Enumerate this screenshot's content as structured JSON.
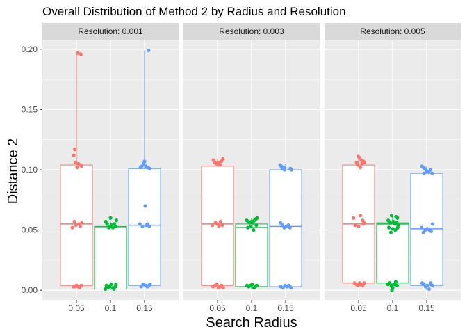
{
  "chart_data": {
    "type": "boxplot",
    "title": "Overall Distribution of Method 2 by Radius and Resolution",
    "xlabel": "Search Radius",
    "ylabel": "Distance 2",
    "ylim": [
      -0.008,
      0.208
    ],
    "yticks": [
      0.0,
      0.05,
      0.1,
      0.15,
      0.2
    ],
    "ytick_labels": [
      "0.00",
      "0.05",
      "0.10",
      "0.15",
      "0.20"
    ],
    "categories": [
      "0.05",
      "0.1",
      "0.15"
    ],
    "colors": {
      "0.05": "#F8766D",
      "0.1": "#00BA38",
      "0.15": "#619CFF"
    },
    "facet_label_prefix": "Resolution: ",
    "panels": [
      {
        "strip": "Resolution: 0.001",
        "boxes": [
          {
            "category": "0.05",
            "whisker_low": 0.003,
            "q1": 0.004,
            "median": 0.055,
            "q3": 0.104,
            "whisker_high": 0.197,
            "points": [
              [
                0.04,
                0.197
              ],
              [
                0.13,
                0.196
              ],
              [
                -0.05,
                0.117
              ],
              [
                -0.08,
                0.112
              ],
              [
                -0.03,
                0.106
              ],
              [
                0.06,
                0.105
              ],
              [
                0.12,
                0.104
              ],
              [
                0.15,
                0.103
              ],
              [
                0.02,
                0.102
              ],
              [
                -0.12,
                0.052
              ],
              [
                -0.02,
                0.054
              ],
              [
                0.07,
                0.055
              ],
              [
                0.11,
                0.053
              ],
              [
                0.16,
                0.056
              ],
              [
                -0.06,
                0.057
              ],
              [
                -0.04,
                0.003
              ],
              [
                0.0,
                0.004
              ],
              [
                0.05,
                0.003
              ],
              [
                0.09,
                0.002
              ],
              [
                0.14,
                0.004
              ],
              [
                -0.09,
                0.003
              ]
            ]
          },
          {
            "category": "0.1",
            "whisker_low": 0.0,
            "q1": 0.001,
            "median": 0.052,
            "q3": 0.053,
            "whisker_high": 0.057,
            "points": [
              [
                -0.14,
                0.057
              ],
              [
                -0.1,
                0.055
              ],
              [
                -0.05,
                0.052
              ],
              [
                -0.01,
                0.053
              ],
              [
                0.03,
                0.054
              ],
              [
                0.07,
                0.052
              ],
              [
                0.11,
                0.055
              ],
              [
                0.15,
                0.053
              ],
              [
                0.17,
                0.058
              ],
              [
                0.0,
                0.06
              ],
              [
                -0.12,
                0.004
              ],
              [
                -0.08,
                0.002
              ],
              [
                -0.03,
                0.003
              ],
              [
                0.02,
                0.005
              ],
              [
                0.06,
                0.002
              ],
              [
                0.1,
                0.001
              ],
              [
                0.14,
                0.003
              ],
              [
                0.16,
                0.005
              ],
              [
                -0.15,
                0.001
              ]
            ]
          },
          {
            "category": "0.15",
            "whisker_low": 0.003,
            "q1": 0.004,
            "median": 0.054,
            "q3": 0.101,
            "whisker_high": 0.199,
            "points": [
              [
                0.12,
                0.199
              ],
              [
                0.0,
                0.107
              ],
              [
                -0.03,
                0.105
              ],
              [
                0.04,
                0.103
              ],
              [
                0.1,
                0.102
              ],
              [
                0.15,
                0.101
              ],
              [
                -0.12,
                0.102
              ],
              [
                -0.08,
                0.103
              ],
              [
                0.02,
                0.07
              ],
              [
                -0.14,
                0.055
              ],
              [
                -0.06,
                0.053
              ],
              [
                0.05,
                0.054
              ],
              [
                0.09,
                0.055
              ],
              [
                0.14,
                0.053
              ],
              [
                -0.1,
                0.003
              ],
              [
                -0.04,
                0.005
              ],
              [
                0.03,
                0.004
              ],
              [
                0.08,
                0.003
              ],
              [
                0.13,
                0.004
              ],
              [
                0.16,
                0.005
              ]
            ]
          }
        ]
      },
      {
        "strip": "Resolution: 0.003",
        "boxes": [
          {
            "category": "0.05",
            "whisker_low": 0.002,
            "q1": 0.004,
            "median": 0.055,
            "q3": 0.103,
            "whisker_high": 0.109,
            "points": [
              [
                -0.12,
                0.108
              ],
              [
                -0.08,
                0.106
              ],
              [
                -0.03,
                0.105
              ],
              [
                0.02,
                0.106
              ],
              [
                0.07,
                0.104
              ],
              [
                0.11,
                0.107
              ],
              [
                0.16,
                0.109
              ],
              [
                -0.15,
                0.054
              ],
              [
                -0.06,
                0.056
              ],
              [
                0.0,
                0.055
              ],
              [
                0.04,
                0.053
              ],
              [
                0.09,
                0.057
              ],
              [
                0.14,
                0.054
              ],
              [
                -0.13,
                0.003
              ],
              [
                -0.07,
                0.004
              ],
              [
                -0.02,
                0.005
              ],
              [
                0.03,
                0.002
              ],
              [
                0.08,
                0.003
              ],
              [
                0.12,
                0.004
              ],
              [
                0.17,
                0.002
              ]
            ]
          },
          {
            "category": "0.1",
            "whisker_low": 0.001,
            "q1": 0.003,
            "median": 0.052,
            "q3": 0.055,
            "whisker_high": 0.06,
            "points": [
              [
                -0.14,
                0.058
              ],
              [
                -0.09,
                0.057
              ],
              [
                -0.05,
                0.056
              ],
              [
                0.0,
                0.057
              ],
              [
                0.04,
                0.056
              ],
              [
                0.08,
                0.058
              ],
              [
                0.12,
                0.059
              ],
              [
                0.16,
                0.06
              ],
              [
                -0.11,
                0.052
              ],
              [
                -0.02,
                0.053
              ],
              [
                0.06,
                0.05
              ],
              [
                0.14,
                0.054
              ],
              [
                -0.13,
                0.004
              ],
              [
                -0.08,
                0.003
              ],
              [
                -0.03,
                0.004
              ],
              [
                0.02,
                0.005
              ],
              [
                0.07,
                0.002
              ],
              [
                0.11,
                0.003
              ],
              [
                0.15,
                0.004
              ]
            ]
          },
          {
            "category": "0.15",
            "whisker_low": 0.002,
            "q1": 0.003,
            "median": 0.053,
            "q3": 0.1,
            "whisker_high": 0.105,
            "points": [
              [
                -0.16,
                0.104
              ],
              [
                -0.13,
                0.103
              ],
              [
                -0.1,
                0.101
              ],
              [
                -0.06,
                0.102
              ],
              [
                -0.03,
                0.1
              ],
              [
                0.14,
                0.101
              ],
              [
                0.17,
                0.1
              ],
              [
                -0.15,
                0.056
              ],
              [
                -0.09,
                0.054
              ],
              [
                -0.04,
                0.052
              ],
              [
                0.02,
                0.053
              ],
              [
                0.08,
                0.054
              ],
              [
                0.13,
                0.052
              ],
              [
                -0.14,
                0.003
              ],
              [
                -0.08,
                0.002
              ],
              [
                -0.02,
                0.004
              ],
              [
                0.03,
                0.003
              ],
              [
                0.09,
                0.004
              ],
              [
                0.13,
                0.003
              ],
              [
                0.16,
                0.002
              ]
            ]
          }
        ]
      },
      {
        "strip": "Resolution: 0.005",
        "boxes": [
          {
            "category": "0.05",
            "whisker_low": 0.004,
            "q1": 0.006,
            "median": 0.055,
            "q3": 0.104,
            "whisker_high": 0.111,
            "points": [
              [
                -0.01,
                0.111
              ],
              [
                0.03,
                0.11
              ],
              [
                0.08,
                0.108
              ],
              [
                -0.06,
                0.106
              ],
              [
                0.1,
                0.105
              ],
              [
                0.14,
                0.107
              ],
              [
                0.17,
                0.106
              ],
              [
                -0.03,
                0.104
              ],
              [
                0.05,
                0.102
              ],
              [
                -0.15,
                0.06
              ],
              [
                0.05,
                0.062
              ],
              [
                0.12,
                0.058
              ],
              [
                0.16,
                0.056
              ],
              [
                -0.1,
                0.054
              ],
              [
                0.0,
                0.053
              ],
              [
                0.14,
                0.055
              ],
              [
                -0.12,
                0.006
              ],
              [
                -0.07,
                0.005
              ],
              [
                -0.02,
                0.004
              ],
              [
                0.03,
                0.006
              ],
              [
                0.07,
                0.005
              ],
              [
                0.12,
                0.004
              ],
              [
                0.16,
                0.006
              ]
            ]
          },
          {
            "category": "0.1",
            "whisker_low": 0.0,
            "q1": 0.006,
            "median": 0.055,
            "q3": 0.056,
            "whisker_high": 0.062,
            "points": [
              [
                -0.03,
                0.062
              ],
              [
                0.1,
                0.061
              ],
              [
                0.14,
                0.06
              ],
              [
                -0.13,
                0.058
              ],
              [
                -0.08,
                0.056
              ],
              [
                0.02,
                0.057
              ],
              [
                0.07,
                0.055
              ],
              [
                0.12,
                0.056
              ],
              [
                0.16,
                0.054
              ],
              [
                -0.11,
                0.052
              ],
              [
                0.0,
                0.051
              ],
              [
                -0.05,
                0.048
              ],
              [
                0.08,
                0.05
              ],
              [
                0.15,
                0.052
              ],
              [
                -0.14,
                0.005
              ],
              [
                -0.09,
                0.006
              ],
              [
                -0.04,
                0.004
              ],
              [
                0.0,
                0.002
              ],
              [
                0.05,
                0.005
              ],
              [
                0.09,
                0.007
              ],
              [
                0.13,
                0.004
              ],
              [
                -0.02,
                0.0
              ]
            ]
          },
          {
            "category": "0.15",
            "whisker_low": 0.0,
            "q1": 0.004,
            "median": 0.051,
            "q3": 0.097,
            "whisker_high": 0.103,
            "points": [
              [
                -0.14,
                0.103
              ],
              [
                -0.1,
                0.102
              ],
              [
                -0.06,
                0.101
              ],
              [
                0.0,
                0.099
              ],
              [
                0.06,
                0.098
              ],
              [
                0.11,
                0.1
              ],
              [
                0.16,
                0.097
              ],
              [
                -0.08,
                0.097
              ],
              [
                -0.15,
                0.052
              ],
              [
                -0.1,
                0.048
              ],
              [
                -0.04,
                0.05
              ],
              [
                0.02,
                0.051
              ],
              [
                0.08,
                0.05
              ],
              [
                0.13,
                0.049
              ],
              [
                0.17,
                0.055
              ],
              [
                -0.13,
                0.006
              ],
              [
                -0.08,
                0.005
              ],
              [
                -0.03,
                0.003
              ],
              [
                0.02,
                0.004
              ],
              [
                0.07,
                0.001
              ],
              [
                0.12,
                0.006
              ],
              [
                0.16,
                0.004
              ]
            ]
          }
        ]
      }
    ]
  }
}
